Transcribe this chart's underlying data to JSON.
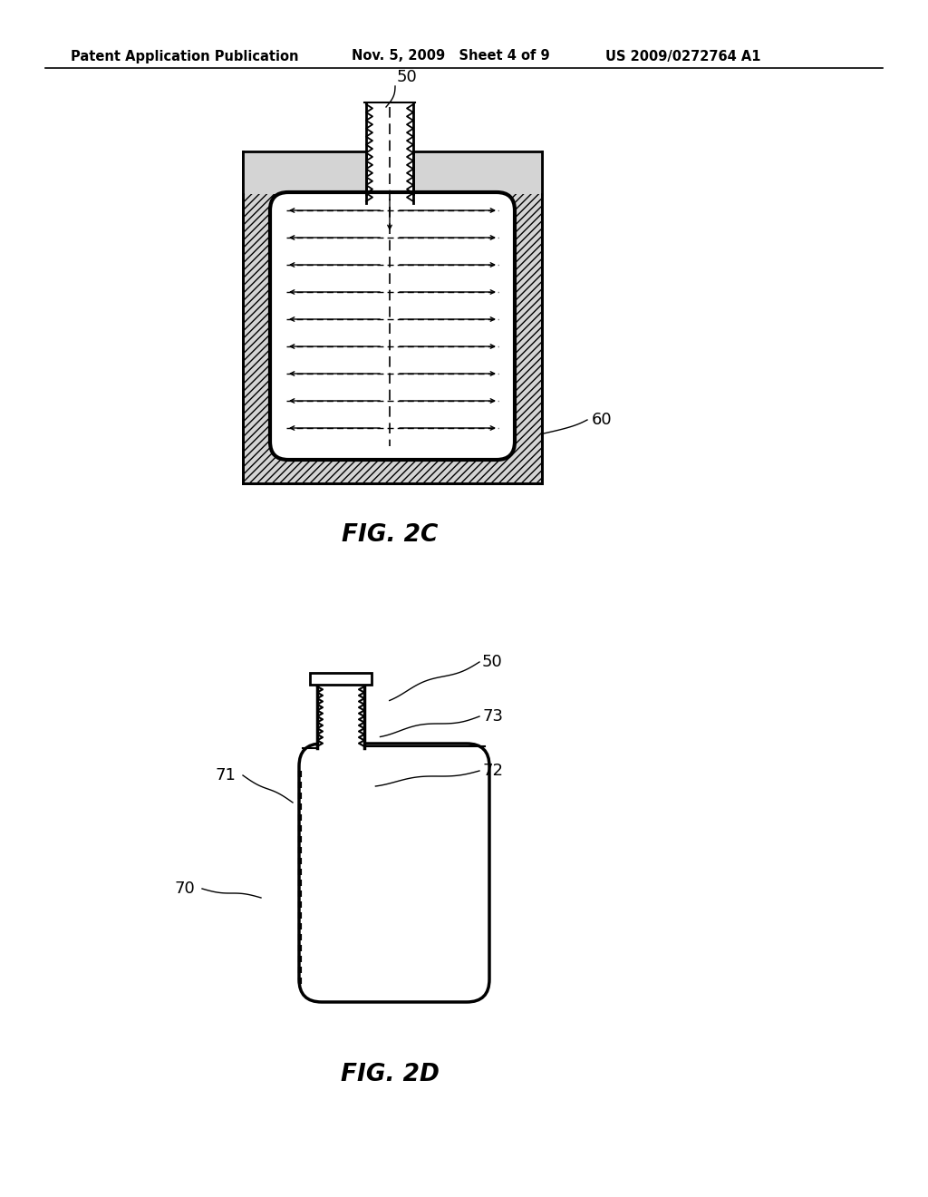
{
  "background_color": "#ffffff",
  "header_left": "Patent Application Publication",
  "header_mid": "Nov. 5, 2009   Sheet 4 of 9",
  "header_right": "US 2009/0272764 A1",
  "fig2c_label": "FIG. 2C",
  "fig2d_label": "FIG. 2D",
  "label_50_top": "50",
  "label_60": "60",
  "label_50_bot": "50",
  "label_70": "70",
  "label_71": "71",
  "label_72": "72",
  "label_73": "73",
  "hatch_color": "#b0b0b0",
  "line_color": "#000000"
}
